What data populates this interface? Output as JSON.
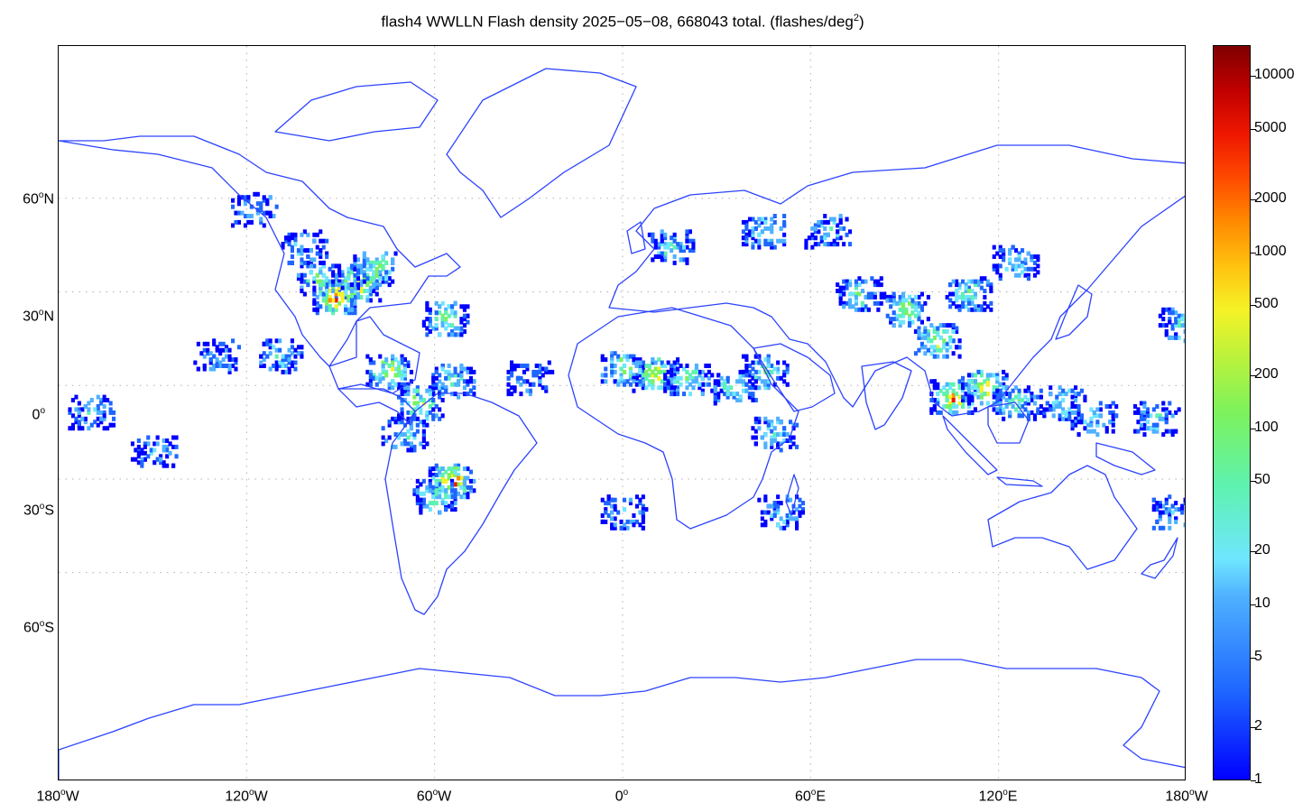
{
  "title_main": "flash4 WWLLN Flash density 2025−05−08, 668043 total. (flashes/deg",
  "title_sup": "2",
  "title_end": ")",
  "lat_labels": [
    {
      "value": "60",
      "hem": "N"
    },
    {
      "value": "30",
      "hem": "N"
    },
    {
      "value": "0",
      "hem": ""
    },
    {
      "value": "30",
      "hem": "S"
    },
    {
      "value": "60",
      "hem": "S"
    }
  ],
  "lon_labels": [
    {
      "value": "180",
      "hem": "W"
    },
    {
      "value": "120",
      "hem": "W"
    },
    {
      "value": "60",
      "hem": "W"
    },
    {
      "value": "0",
      "hem": ""
    },
    {
      "value": "60",
      "hem": "E"
    },
    {
      "value": "120",
      "hem": "E"
    },
    {
      "value": "180",
      "hem": "W"
    }
  ],
  "degree_symbol": "o",
  "colorbar_labels": [
    "10000",
    "5000",
    "2000",
    "1000",
    "500",
    "200",
    "100",
    "50",
    "20",
    "10",
    "5",
    "2",
    "1"
  ],
  "colorbar_range": [
    1,
    15000
  ],
  "colorbar_scale": "log",
  "colors": {
    "coastline": "#2c43ff",
    "grid": "#b0b0b0",
    "colormap": [
      "#0000ff",
      "#1e66ff",
      "#4fb1ff",
      "#6fe6ff",
      "#5ef2b0",
      "#7cf25d",
      "#f5f226",
      "#ff8a00",
      "#ee1700",
      "#800000"
    ]
  },
  "map_extent": {
    "lon": [
      -180,
      180
    ],
    "lat": [
      -90,
      90
    ]
  },
  "projection": "equirectangular",
  "lightning_regions": [
    {
      "lon": -85,
      "lat": 33,
      "intensity": 0.85
    },
    {
      "lon": -92,
      "lat": 29,
      "intensity": 0.95
    },
    {
      "lon": -80,
      "lat": 38,
      "intensity": 0.6
    },
    {
      "lon": -97,
      "lat": 35,
      "intensity": 0.55
    },
    {
      "lon": -102,
      "lat": 45,
      "intensity": 0.3
    },
    {
      "lon": -118,
      "lat": 57,
      "intensity": 0.25
    },
    {
      "lon": -57,
      "lat": 22,
      "intensity": 0.6
    },
    {
      "lon": -75,
      "lat": 5,
      "intensity": 0.7
    },
    {
      "lon": -65,
      "lat": -5,
      "intensity": 0.6
    },
    {
      "lon": -55,
      "lat": 2,
      "intensity": 0.5
    },
    {
      "lon": -70,
      "lat": -15,
      "intensity": 0.45
    },
    {
      "lon": -55,
      "lat": -30,
      "intensity": 0.9
    },
    {
      "lon": -60,
      "lat": -35,
      "intensity": 0.5
    },
    {
      "lon": -110,
      "lat": 10,
      "intensity": 0.35
    },
    {
      "lon": -130,
      "lat": 10,
      "intensity": 0.25
    },
    {
      "lon": -170,
      "lat": -8,
      "intensity": 0.35
    },
    {
      "lon": -150,
      "lat": -20,
      "intensity": 0.25
    },
    {
      "lon": -30,
      "lat": 3,
      "intensity": 0.3
    },
    {
      "lon": 0,
      "lat": 6,
      "intensity": 0.6
    },
    {
      "lon": 10,
      "lat": 4,
      "intensity": 0.75
    },
    {
      "lon": 20,
      "lat": 3,
      "intensity": 0.55
    },
    {
      "lon": 35,
      "lat": 0,
      "intensity": 0.5
    },
    {
      "lon": 45,
      "lat": 5,
      "intensity": 0.5
    },
    {
      "lon": 48,
      "lat": -15,
      "intensity": 0.4
    },
    {
      "lon": 0,
      "lat": -40,
      "intensity": 0.35
    },
    {
      "lon": 50,
      "lat": -40,
      "intensity": 0.35
    },
    {
      "lon": 15,
      "lat": 45,
      "intensity": 0.4
    },
    {
      "lon": 45,
      "lat": 50,
      "intensity": 0.45
    },
    {
      "lon": 65,
      "lat": 50,
      "intensity": 0.4
    },
    {
      "lon": 75,
      "lat": 30,
      "intensity": 0.5
    },
    {
      "lon": 90,
      "lat": 25,
      "intensity": 0.6
    },
    {
      "lon": 100,
      "lat": 15,
      "intensity": 0.65
    },
    {
      "lon": 110,
      "lat": 30,
      "intensity": 0.55
    },
    {
      "lon": 125,
      "lat": 40,
      "intensity": 0.4
    },
    {
      "lon": 105,
      "lat": -3,
      "intensity": 0.85
    },
    {
      "lon": 115,
      "lat": 0,
      "intensity": 0.75
    },
    {
      "lon": 125,
      "lat": -5,
      "intensity": 0.55
    },
    {
      "lon": 140,
      "lat": -5,
      "intensity": 0.45
    },
    {
      "lon": 150,
      "lat": -10,
      "intensity": 0.35
    },
    {
      "lon": 175,
      "lat": -40,
      "intensity": 0.3
    },
    {
      "lon": 178,
      "lat": 20,
      "intensity": 0.45
    },
    {
      "lon": 170,
      "lat": -10,
      "intensity": 0.4
    }
  ]
}
